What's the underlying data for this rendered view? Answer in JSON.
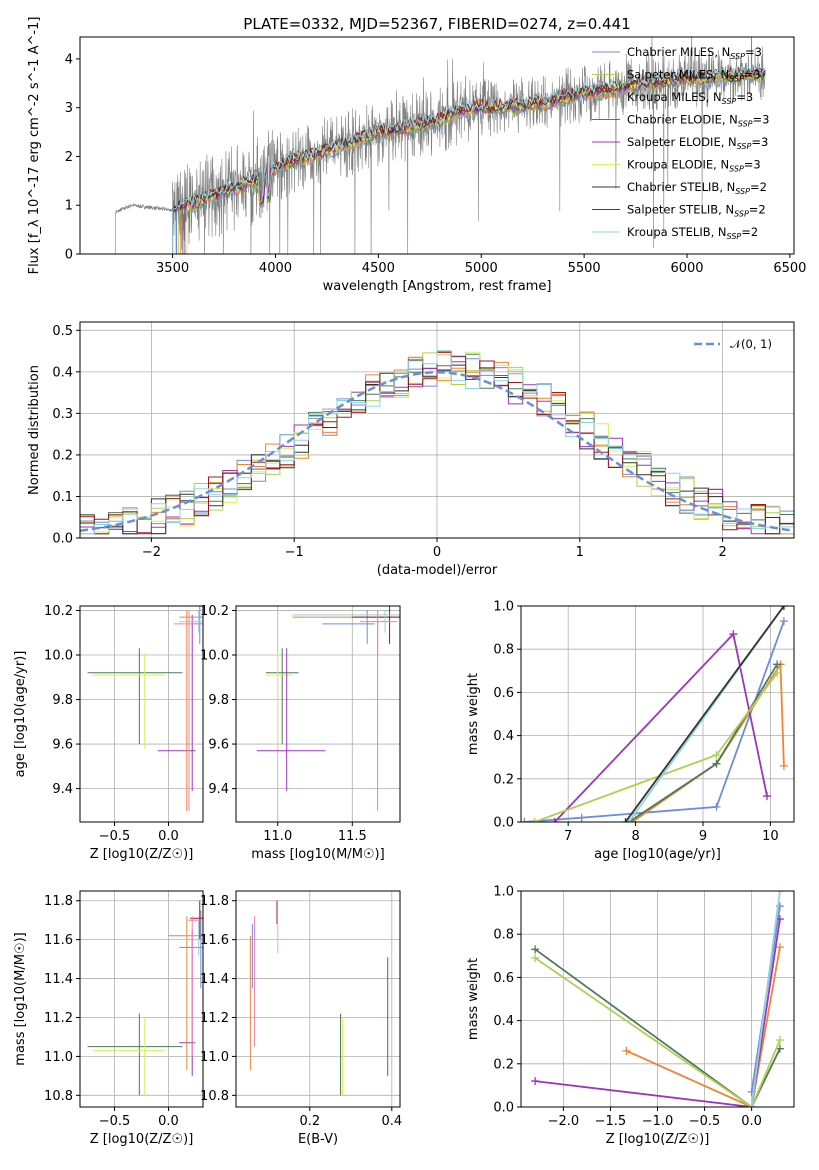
{
  "chart_data": [
    {
      "type": "line",
      "title": "PLATE=0332, MJD=52367, FIBERID=0274, z=0.441",
      "xlabel": "wavelength [Angstrom, rest frame]",
      "ylabel": "Flux [f_λ 10^-17 erg cm^-2 s^-1 A^-1]",
      "xlim": [
        3050,
        6520
      ],
      "ylim": [
        0,
        4.45
      ],
      "xticks": [
        "3500",
        "4000",
        "4500",
        "5000",
        "5500",
        "6000",
        "6500"
      ],
      "yticks": [
        "0",
        "1",
        "2",
        "3",
        "4"
      ],
      "legend_position": "upper-right",
      "series": [
        {
          "name": "Chabrier MILES, N_SSP=3",
          "color": "#6c8ed8"
        },
        {
          "name": "Salpeter MILES, N_SSP=3",
          "color": "#b0cf53"
        },
        {
          "name": "Kroupa MILES, N_SSP=3",
          "color": "#ee8536"
        },
        {
          "name": "Chabrier ELODIE, N_SSP=3",
          "color": "#4d7a5a"
        },
        {
          "name": "Salpeter ELODIE, N_SSP=3",
          "color": "#9b36b8"
        },
        {
          "name": "Kroupa ELODIE, N_SSP=3",
          "color": "#d6ef5a"
        },
        {
          "name": "Chabrier STELIB, N_SSP=2",
          "color": "#333333"
        },
        {
          "name": "Salpeter STELIB, N_SSP=2",
          "color": "#9a1c1c"
        },
        {
          "name": "Kroupa STELIB, N_SSP=2",
          "color": "#8fd3e0"
        }
      ],
      "data_color": "#7f7f7f",
      "continuum": {
        "x": [
          3220,
          3300,
          3400,
          3500,
          3600,
          3700,
          3800,
          3900,
          4000,
          4100,
          4200,
          4300,
          4400,
          4500,
          4600,
          4700,
          4800,
          4900,
          5000,
          5100,
          5200,
          5300,
          5400,
          5500,
          5600,
          5700,
          5800,
          5900,
          6000,
          6100,
          6200,
          6300,
          6380
        ],
        "y": [
          0.85,
          1.0,
          0.95,
          0.9,
          1.05,
          1.2,
          1.35,
          1.5,
          1.75,
          1.95,
          2.05,
          2.2,
          2.35,
          2.5,
          2.55,
          2.65,
          2.75,
          2.95,
          3.0,
          3.0,
          3.05,
          3.1,
          3.2,
          3.3,
          3.35,
          3.45,
          3.5,
          3.55,
          3.6,
          3.6,
          3.65,
          3.7,
          3.7
        ]
      },
      "grid": false
    },
    {
      "type": "line",
      "xlabel": "(data-model)/error",
      "ylabel": "Normed distribution",
      "xlim": [
        -2.5,
        2.5
      ],
      "ylim": [
        0,
        0.52
      ],
      "xticks": [
        "-2",
        "-1",
        "0",
        "1",
        "2"
      ],
      "yticks": [
        "0.0",
        "0.1",
        "0.2",
        "0.3",
        "0.4",
        "0.5"
      ],
      "grid": true,
      "legend": "𝒩(0, 1)",
      "legend_position": "upper-right",
      "gaussian_color": "#6a8fd8"
    },
    {
      "type": "scatter",
      "xlabel": "Z [log10(Z/Z☉)]",
      "ylabel": "age  [log10(age/yr)]",
      "xlim": [
        -0.82,
        0.32
      ],
      "ylim": [
        9.25,
        10.22
      ],
      "xticks": [
        "-0.5",
        "0.0"
      ],
      "yticks": [
        "9.4",
        "9.6",
        "9.8",
        "10.0",
        "10.2"
      ],
      "grid": true
    },
    {
      "type": "scatter",
      "xlabel": "mass [log10(M/M☉)]",
      "xlim": [
        10.72,
        11.82
      ],
      "ylim": [
        9.25,
        10.22
      ],
      "xticks": [
        "11.0",
        "11.5"
      ],
      "yticks": [
        "9.4",
        "9.6",
        "9.8",
        "10.0",
        "10.2"
      ],
      "grid": true
    },
    {
      "type": "line",
      "xlabel": "age  [log10(age/yr)]",
      "ylabel": "mass weight",
      "xlim": [
        6.3,
        10.35
      ],
      "ylim": [
        0,
        1
      ],
      "xticks": [
        "7",
        "8",
        "9",
        "10"
      ],
      "yticks": [
        "0.0",
        "0.2",
        "0.4",
        "0.6",
        "0.8",
        "1.0"
      ],
      "grid": true,
      "series": [
        {
          "color": "#6c8ed8",
          "x": [
            6.35,
            7.2,
            9.2,
            10.2
          ],
          "y": [
            0.0,
            0.02,
            0.07,
            0.93
          ]
        },
        {
          "color": "#ee8536",
          "x": [
            7.95,
            9.2,
            10.15,
            10.2
          ],
          "y": [
            0.0,
            0.27,
            0.73,
            0.26
          ]
        },
        {
          "color": "#9b36b8",
          "x": [
            6.8,
            9.45,
            9.95
          ],
          "y": [
            0.0,
            0.87,
            0.12
          ]
        },
        {
          "color": "#4d7a5a",
          "x": [
            7.9,
            9.2,
            10.1
          ],
          "y": [
            0.0,
            0.27,
            0.73
          ]
        },
        {
          "color": "#b0cf53",
          "x": [
            6.5,
            9.2,
            10.1
          ],
          "y": [
            0.0,
            0.31,
            0.69
          ]
        },
        {
          "color": "#8fd3e0",
          "x": [
            7.9,
            10.2
          ],
          "y": [
            0.0,
            1.0
          ]
        },
        {
          "color": "#333333",
          "x": [
            7.85,
            10.2
          ],
          "y": [
            0.0,
            1.0
          ]
        }
      ]
    },
    {
      "type": "scatter",
      "xlabel": "Z [log10(Z/Z☉)]",
      "ylabel": "mass [log10(M/M☉)]",
      "xlim": [
        -0.82,
        0.32
      ],
      "ylim": [
        10.74,
        11.85
      ],
      "xticks": [
        "-0.5",
        "0.0"
      ],
      "yticks": [
        "10.8",
        "11.0",
        "11.2",
        "11.4",
        "11.6",
        "11.8"
      ],
      "grid": true
    },
    {
      "type": "scatter",
      "xlabel": "E(B-V)",
      "xlim": [
        0.02,
        0.42
      ],
      "ylim": [
        10.74,
        11.85
      ],
      "xticks": [
        "0.2",
        "0.4"
      ],
      "yticks": [
        "10.8",
        "11.0",
        "11.2",
        "11.4",
        "11.6",
        "11.8"
      ],
      "grid": true
    },
    {
      "type": "line",
      "xlabel": "Z [log10(Z/Z☉)]",
      "ylabel": "mass weight",
      "xlim": [
        -2.45,
        0.45
      ],
      "ylim": [
        0,
        1
      ],
      "xticks": [
        "-2.0",
        "-1.5",
        "-1.0",
        "-0.5",
        "0.0"
      ],
      "yticks": [
        "0.0",
        "0.2",
        "0.4",
        "0.6",
        "0.8",
        "1.0"
      ],
      "grid": true,
      "series": [
        {
          "color": "#6c8ed8",
          "x": [
            0.0,
            0.3
          ],
          "y": [
            0.07,
            0.93
          ]
        },
        {
          "color": "#ee8536",
          "x": [
            -1.33,
            0.0,
            0.3
          ],
          "y": [
            0.26,
            0.0,
            0.74
          ]
        },
        {
          "color": "#9b36b8",
          "x": [
            -2.3,
            0.0,
            0.3
          ],
          "y": [
            0.12,
            0.0,
            0.87
          ]
        },
        {
          "color": "#4d7a5a",
          "x": [
            -2.3,
            0.0,
            0.3
          ],
          "y": [
            0.73,
            0.0,
            0.27
          ]
        },
        {
          "color": "#b0cf53",
          "x": [
            -2.3,
            0.0,
            0.3
          ],
          "y": [
            0.69,
            0.0,
            0.31
          ]
        },
        {
          "color": "#8fd3e0",
          "x": [
            0.0,
            0.3
          ],
          "y": [
            0.0,
            1.0
          ]
        }
      ]
    }
  ]
}
